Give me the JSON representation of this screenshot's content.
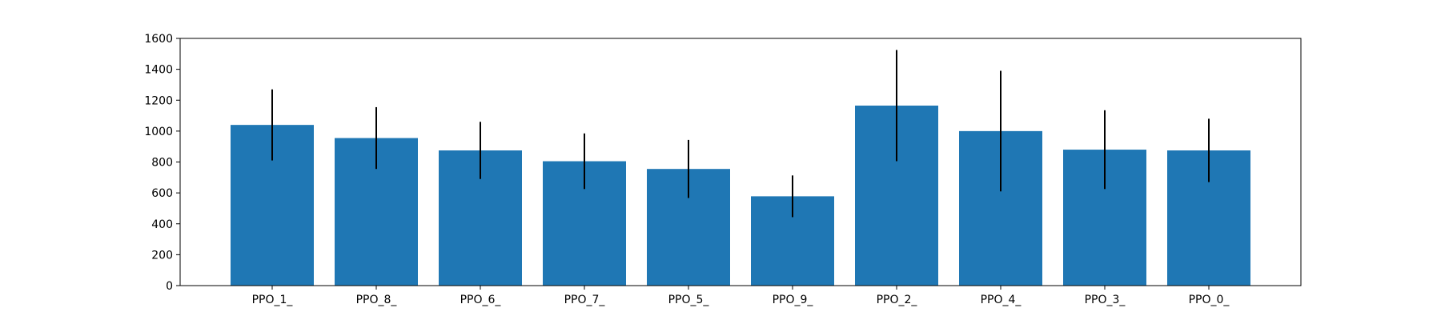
{
  "chart_data": {
    "type": "bar",
    "title": "",
    "xlabel": "",
    "ylabel": "",
    "categories": [
      "PPO_1_",
      "PPO_8_",
      "PPO_6_",
      "PPO_7_",
      "PPO_5_",
      "PPO_9_",
      "PPO_2_",
      "PPO_4_",
      "PPO_3_",
      "PPO_0_"
    ],
    "values": [
      1040,
      955,
      875,
      805,
      755,
      578,
      1165,
      1000,
      880,
      875
    ],
    "errors": [
      230,
      200,
      185,
      180,
      188,
      135,
      360,
      390,
      255,
      205
    ],
    "ylim": [
      0,
      1600
    ],
    "yticks": [
      0,
      200,
      400,
      600,
      800,
      1000,
      1200,
      1400,
      1600
    ],
    "grid": false,
    "bar_color": "#1f77b4",
    "error_color": "#000000"
  }
}
